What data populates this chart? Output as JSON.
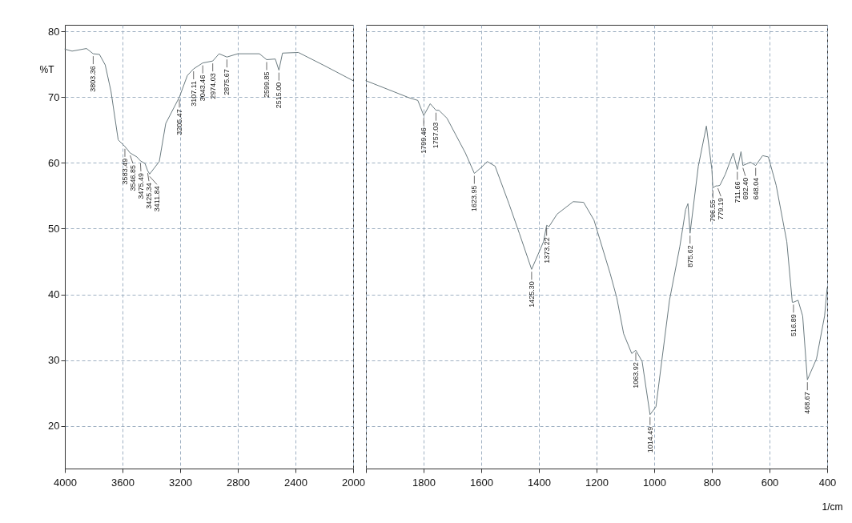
{
  "chart_data": [
    {
      "type": "line",
      "ylabel": "%T",
      "xlim": [
        4000,
        2000
      ],
      "xticks": [
        4000,
        3600,
        3200,
        2800,
        2400,
        2000
      ],
      "ylim": [
        13.5,
        81
      ],
      "yticks": [
        20,
        30,
        40,
        50,
        60,
        70,
        80
      ],
      "grid": true,
      "line_style": "solid",
      "series": [
        {
          "color": "#6b7b80",
          "x": [
            4000,
            3950,
            3900,
            3850,
            3803.36,
            3760,
            3720,
            3680,
            3630,
            3583.49,
            3546.85,
            3500,
            3475.49,
            3444,
            3425.34,
            3411.84,
            3345,
            3300,
            3205.47,
            3150,
            3107.11,
            3043.46,
            2974.03,
            2930,
            2875.67,
            2800,
            2650,
            2599.85,
            2540,
            2515,
            2490,
            2380,
            2200,
            2000
          ],
          "values": [
            77.3,
            77.0,
            77.2,
            77.4,
            76.6,
            76.5,
            74.9,
            70.9,
            63.5,
            62.5,
            61.5,
            60.9,
            60.3,
            59.9,
            58.8,
            58.3,
            60.2,
            66,
            70,
            73.3,
            74.3,
            75.2,
            75.5,
            76.6,
            76.1,
            76.6,
            76.6,
            75.7,
            75.8,
            74.1,
            76.7,
            76.8,
            74.8,
            72.5
          ]
        }
      ],
      "annotations": [
        {
          "text": "3803.36",
          "x": 3803.36,
          "y": 76.6
        },
        {
          "text": "3583.49",
          "x": 3583.49,
          "y": 62.5
        },
        {
          "text": "3546.85",
          "x": 3546.85,
          "y": 61.5
        },
        {
          "text": "3475.49",
          "x": 3475.49,
          "y": 60.3
        },
        {
          "text": "3425.34",
          "x": 3425.34,
          "y": 58.8
        },
        {
          "text": "3411.84",
          "x": 3411.84,
          "y": 58.3
        },
        {
          "text": "3205.47",
          "x": 3205.47,
          "y": 70
        },
        {
          "text": "3107.11",
          "x": 3107.11,
          "y": 74.3
        },
        {
          "text": "3043.46",
          "x": 3043.46,
          "y": 75.2
        },
        {
          "text": "2974.03",
          "x": 2974.03,
          "y": 75.5
        },
        {
          "text": "2875.67",
          "x": 2875.67,
          "y": 76.1
        },
        {
          "text": "2599.85",
          "x": 2599.85,
          "y": 75.7
        },
        {
          "text": "2515.00",
          "x": 2515,
          "y": 74.1
        }
      ]
    },
    {
      "type": "line",
      "xlabel": "1/cm",
      "xlim": [
        2000,
        400
      ],
      "xticks": [
        {
          "value": 2000,
          "label": null
        },
        1800,
        1600,
        1400,
        1200,
        1000,
        800,
        600,
        400
      ],
      "ylim": [
        13.5,
        81
      ],
      "yticks": [
        20,
        30,
        40,
        50,
        60,
        70,
        80
      ],
      "grid": true,
      "line_style": "solid",
      "tick_labels": "x",
      "series": [
        {
          "color": "#6b7b80",
          "x": [
            2000,
            1850,
            1820,
            1799.46,
            1777,
            1757.03,
            1747,
            1719,
            1655,
            1623.95,
            1600,
            1579,
            1552,
            1504,
            1468,
            1425.3,
            1384,
            1373.22,
            1365,
            1337,
            1281,
            1245,
            1209,
            1153,
            1130,
            1106,
            1078,
            1063.92,
            1042,
            1014.49,
            994,
            947,
            911,
            891,
            883,
            875.62,
            847,
            819,
            800,
            796.55,
            786,
            779.19,
            772,
            753,
            726,
            711.66,
            699,
            692.4,
            666,
            648.04,
            624,
            604,
            577,
            540,
            521,
            516.89,
            501,
            485,
            468.67,
            437,
            409,
            400
          ],
          "values": [
            72.5,
            69.9,
            69.5,
            67.2,
            69,
            68,
            68,
            66.8,
            61.5,
            58.4,
            59.3,
            60.2,
            59.5,
            53.8,
            49.3,
            43.8,
            48,
            50.5,
            50.3,
            52.2,
            54.1,
            54,
            51.3,
            43.2,
            39.5,
            34,
            31,
            31.5,
            29.8,
            21.7,
            22.9,
            39.1,
            47.3,
            52.9,
            53.8,
            49.3,
            59.5,
            65.6,
            59,
            56.2,
            56.5,
            56.5,
            56.6,
            58.3,
            61.5,
            59,
            61.7,
            59.6,
            60.1,
            59.6,
            61.1,
            60.9,
            56.6,
            48,
            38.8,
            38.8,
            39.1,
            36.7,
            27,
            30.2,
            36.7,
            41
          ]
        }
      ],
      "annotations": [
        {
          "text": "1799.46",
          "x": 1799.46,
          "y": 67.2
        },
        {
          "text": "1757.03",
          "x": 1757.03,
          "y": 68
        },
        {
          "text": "1623.95",
          "x": 1623.95,
          "y": 58.4
        },
        {
          "text": "1425.30",
          "x": 1425.3,
          "y": 43.8
        },
        {
          "text": "1373.22",
          "x": 1373.22,
          "y": 50.5
        },
        {
          "text": "1063.92",
          "x": 1063.92,
          "y": 31.5
        },
        {
          "text": "1014.49",
          "x": 1014.49,
          "y": 21.7
        },
        {
          "text": "875.62",
          "x": 875.62,
          "y": 49.3
        },
        {
          "text": "796.55",
          "x": 796.55,
          "y": 56.2
        },
        {
          "text": "779.19",
          "x": 779.19,
          "y": 56.5
        },
        {
          "text": "711.66",
          "x": 711.66,
          "y": 59
        },
        {
          "text": "692.40",
          "x": 692.4,
          "y": 59.6
        },
        {
          "text": "648.04",
          "x": 648.04,
          "y": 59.6
        },
        {
          "text": "516.89",
          "x": 516.89,
          "y": 38.8
        },
        {
          "text": "468.67",
          "x": 468.67,
          "y": 27
        }
      ]
    }
  ]
}
